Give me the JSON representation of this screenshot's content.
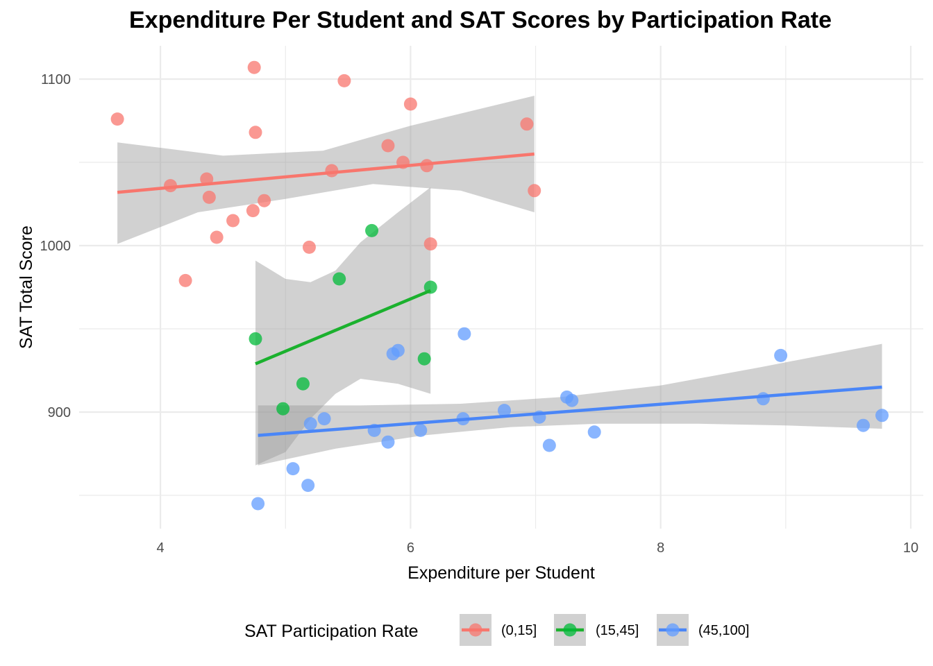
{
  "chart_data": {
    "type": "scatter",
    "title": "Expenditure Per Student and SAT Scores by Participation Rate",
    "xlabel": "Expenditure per Student",
    "ylabel": "SAT Total Score",
    "xlim": [
      3.35,
      10.1
    ],
    "ylim": [
      830,
      1120
    ],
    "xticks": [
      4,
      6,
      8,
      10
    ],
    "yticks": [
      900,
      1000,
      1100
    ],
    "grid": true,
    "legend": {
      "title": "SAT Participation Rate",
      "placement": "bottom"
    },
    "series": [
      {
        "name": "(0,15]",
        "color": "#F8766D",
        "line_color": "#F8766D",
        "points": [
          [
            3.656,
            1076
          ],
          [
            4.08,
            1036
          ],
          [
            4.2,
            979
          ],
          [
            4.37,
            1040
          ],
          [
            4.39,
            1029
          ],
          [
            4.45,
            1005
          ],
          [
            4.58,
            1015
          ],
          [
            4.74,
            1021
          ],
          [
            4.75,
            1107
          ],
          [
            4.76,
            1068
          ],
          [
            4.83,
            1027
          ],
          [
            5.19,
            999
          ],
          [
            5.37,
            1045
          ],
          [
            5.47,
            1099
          ],
          [
            5.82,
            1060
          ],
          [
            5.94,
            1050
          ],
          [
            6.0,
            1085
          ],
          [
            6.13,
            1048
          ],
          [
            6.16,
            1001
          ],
          [
            6.93,
            1073
          ],
          [
            6.99,
            1033
          ]
        ],
        "fit": {
          "x": [
            3.656,
            6.99
          ],
          "y": [
            1032,
            1055
          ]
        },
        "ci_upper": [
          [
            3.656,
            1062
          ],
          [
            4.5,
            1054
          ],
          [
            5.3,
            1057
          ],
          [
            6.0,
            1072
          ],
          [
            6.99,
            1090
          ]
        ],
        "ci_lower": [
          [
            3.656,
            1001
          ],
          [
            4.3,
            1020
          ],
          [
            5.0,
            1028
          ],
          [
            5.7,
            1037
          ],
          [
            6.4,
            1033
          ],
          [
            6.99,
            1020
          ]
        ]
      },
      {
        "name": "(15,45]",
        "color": "#00BA38",
        "line_color": "#1BB12E",
        "points": [
          [
            4.76,
            944
          ],
          [
            4.98,
            902
          ],
          [
            5.14,
            917
          ],
          [
            5.43,
            980
          ],
          [
            5.69,
            1009
          ],
          [
            6.11,
            932
          ],
          [
            6.16,
            975
          ]
        ],
        "fit": {
          "x": [
            4.76,
            6.16
          ],
          "y": [
            929,
            973
          ]
        },
        "ci_upper": [
          [
            4.76,
            991
          ],
          [
            5.0,
            980
          ],
          [
            5.2,
            978
          ],
          [
            5.4,
            985
          ],
          [
            5.6,
            1002
          ],
          [
            5.9,
            1020
          ],
          [
            6.16,
            1035
          ]
        ],
        "ci_lower": [
          [
            4.76,
            868
          ],
          [
            5.0,
            876
          ],
          [
            5.2,
            896
          ],
          [
            5.4,
            911
          ],
          [
            5.6,
            920
          ],
          [
            5.9,
            917
          ],
          [
            6.16,
            911
          ]
        ]
      },
      {
        "name": "(45,100]",
        "color": "#619CFF",
        "line_color": "#4A86F7",
        "points": [
          [
            4.78,
            845
          ],
          [
            5.06,
            866
          ],
          [
            5.18,
            856
          ],
          [
            5.2,
            893
          ],
          [
            5.31,
            896
          ],
          [
            5.71,
            889
          ],
          [
            5.82,
            882
          ],
          [
            5.86,
            935
          ],
          [
            5.9,
            937
          ],
          [
            6.08,
            889
          ],
          [
            6.42,
            896
          ],
          [
            6.43,
            947
          ],
          [
            6.75,
            901
          ],
          [
            7.03,
            897
          ],
          [
            7.11,
            880
          ],
          [
            7.25,
            909
          ],
          [
            7.29,
            907
          ],
          [
            7.47,
            888
          ],
          [
            8.82,
            908
          ],
          [
            8.96,
            934
          ],
          [
            9.62,
            892
          ],
          [
            9.77,
            898
          ]
        ],
        "fit": {
          "x": [
            4.78,
            9.77
          ],
          "y": [
            886,
            915
          ]
        },
        "ci_upper": [
          [
            4.78,
            904
          ],
          [
            5.6,
            904
          ],
          [
            6.4,
            905
          ],
          [
            7.2,
            909
          ],
          [
            8.0,
            916
          ],
          [
            8.8,
            927
          ],
          [
            9.77,
            941
          ]
        ],
        "ci_lower": [
          [
            4.78,
            868
          ],
          [
            5.4,
            878
          ],
          [
            6.1,
            886
          ],
          [
            6.8,
            891
          ],
          [
            7.5,
            893
          ],
          [
            8.3,
            893
          ],
          [
            9.0,
            892
          ],
          [
            9.77,
            890
          ]
        ]
      }
    ]
  }
}
